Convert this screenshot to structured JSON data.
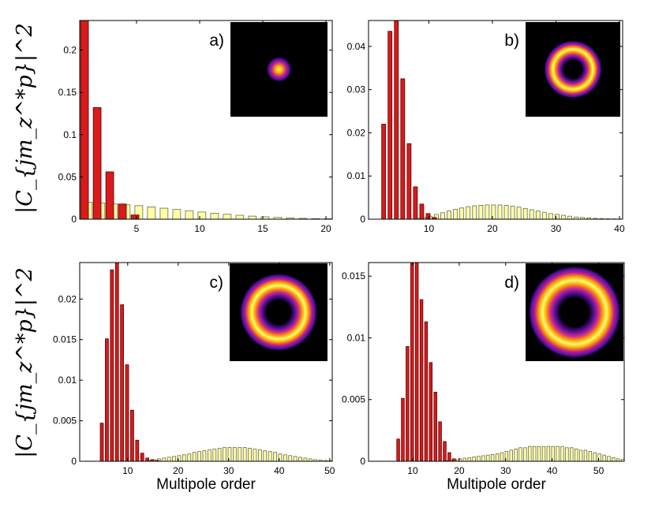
{
  "y_axis_label": "|C_{jm_z^*p}|^2",
  "colors": {
    "red": "#d81b1b",
    "red_edge": "#5a0000",
    "yellow": "#ffffa6",
    "yellow_edge": "#6b6b40"
  },
  "chart_data": [
    {
      "type": "bar",
      "panel": "a)",
      "xlabel": "",
      "xlim": [
        0.5,
        20.5
      ],
      "ylim": [
        0,
        0.235
      ],
      "xticks": [
        5,
        10,
        15,
        20
      ],
      "yticks": [
        0,
        0.05,
        0.1,
        0.15,
        0.2
      ],
      "ytick_labels": [
        "0",
        "0.05",
        "0.1",
        "0.15",
        "0.2"
      ],
      "inset": {
        "kind": "spot",
        "scale": 0.14
      },
      "series": [
        {
          "name": "red",
          "x": [
            1,
            2,
            3,
            4,
            5
          ],
          "values": [
            0.235,
            0.132,
            0.056,
            0.018,
            0.005
          ]
        },
        {
          "name": "yellow",
          "x": [
            1,
            2,
            3,
            4,
            5,
            6,
            7,
            8,
            9,
            10,
            11,
            12,
            13,
            14,
            15,
            16,
            17,
            18,
            19,
            20
          ],
          "values": [
            0.02,
            0.019,
            0.018,
            0.017,
            0.016,
            0.0145,
            0.013,
            0.0115,
            0.01,
            0.0085,
            0.007,
            0.0058,
            0.0046,
            0.0036,
            0.0028,
            0.0021,
            0.0015,
            0.001,
            0.0007,
            0.0005
          ]
        }
      ]
    },
    {
      "type": "bar",
      "panel": "b)",
      "xlabel": "",
      "xlim": [
        0.5,
        40.5
      ],
      "ylim": [
        0,
        0.046
      ],
      "xticks": [
        10,
        20,
        30,
        40
      ],
      "yticks": [
        0,
        0.01,
        0.02,
        0.03,
        0.04
      ],
      "ytick_labels": [
        "0",
        "0.01",
        "0.02",
        "0.03",
        "0.04"
      ],
      "inset": {
        "kind": "ring",
        "scale": 0.2
      },
      "series": [
        {
          "name": "red",
          "x": [
            3,
            4,
            5,
            6,
            7,
            8,
            9,
            10,
            11
          ],
          "values": [
            0.022,
            0.0435,
            0.046,
            0.0325,
            0.0175,
            0.0075,
            0.0035,
            0.0013,
            0.0004
          ]
        },
        {
          "name": "yellow",
          "x": [
            8,
            9,
            10,
            11,
            12,
            13,
            14,
            15,
            16,
            17,
            18,
            19,
            20,
            21,
            22,
            23,
            24,
            25,
            26,
            27,
            28,
            29,
            30,
            31,
            32,
            33,
            34,
            35,
            36,
            37,
            38,
            39,
            40
          ],
          "values": [
            0.0002,
            0.0004,
            0.0007,
            0.0011,
            0.0015,
            0.0019,
            0.0023,
            0.0026,
            0.0029,
            0.0031,
            0.0032,
            0.0033,
            0.0033,
            0.0033,
            0.0032,
            0.003,
            0.0028,
            0.0025,
            0.0022,
            0.0019,
            0.0016,
            0.0013,
            0.0011,
            0.0009,
            0.0007,
            0.0005,
            0.0004,
            0.0003,
            0.0002,
            0.00015,
            0.0001,
            8e-05,
            5e-05
          ]
        }
      ]
    },
    {
      "type": "bar",
      "panel": "c)",
      "xlabel": "Multipole order",
      "xlim": [
        0.5,
        50.5
      ],
      "ylim": [
        0,
        0.0245
      ],
      "xticks": [
        10,
        20,
        30,
        40,
        50
      ],
      "yticks": [
        0,
        0.005,
        0.01,
        0.015,
        0.02
      ],
      "ytick_labels": [
        "0",
        "0.005",
        "0.01",
        "0.015",
        "0.02"
      ],
      "inset": {
        "kind": "ring",
        "scale": 0.26
      },
      "series": [
        {
          "name": "red",
          "x": [
            5,
            6,
            7,
            8,
            9,
            10,
            11,
            12,
            13,
            14,
            15,
            16
          ],
          "values": [
            0.0047,
            0.0151,
            0.0236,
            0.0245,
            0.0193,
            0.0119,
            0.0063,
            0.0026,
            0.001,
            0.0004,
            0.0002,
            0.0001
          ]
        },
        {
          "name": "yellow",
          "x": [
            14,
            15,
            16,
            17,
            18,
            19,
            20,
            21,
            22,
            23,
            24,
            25,
            26,
            27,
            28,
            29,
            30,
            31,
            32,
            33,
            34,
            35,
            36,
            37,
            38,
            39,
            40,
            41,
            42,
            43,
            44,
            45,
            46,
            47,
            48,
            49,
            50
          ],
          "values": [
            0.0001,
            0.0002,
            0.0003,
            0.0004,
            0.0005,
            0.0006,
            0.0007,
            0.0008,
            0.0009,
            0.0011,
            0.0012,
            0.0013,
            0.0014,
            0.0015,
            0.0016,
            0.0017,
            0.0017,
            0.0017,
            0.0017,
            0.0017,
            0.0016,
            0.0015,
            0.0014,
            0.0013,
            0.0012,
            0.0011,
            0.0009,
            0.0008,
            0.0007,
            0.0006,
            0.0005,
            0.0004,
            0.0003,
            0.0002,
            0.00015,
            0.0001,
            7e-05
          ]
        }
      ]
    },
    {
      "type": "bar",
      "panel": "d)",
      "xlabel": "Multipole order",
      "xlim": [
        0.5,
        55.5
      ],
      "ylim": [
        0,
        0.0161
      ],
      "xticks": [
        10,
        20,
        30,
        40,
        50
      ],
      "yticks": [
        0,
        0.005,
        0.01,
        0.015
      ],
      "ytick_labels": [
        "0",
        "0.005",
        "0.01",
        "0.015"
      ],
      "inset": {
        "kind": "ring",
        "scale": 0.31
      },
      "series": [
        {
          "name": "red",
          "x": [
            7,
            8,
            9,
            10,
            11,
            12,
            13,
            14,
            15,
            16,
            17,
            18,
            19
          ],
          "values": [
            0.0018,
            0.0051,
            0.0093,
            0.0161,
            0.0161,
            0.0131,
            0.0113,
            0.008,
            0.0056,
            0.0032,
            0.0016,
            0.0007,
            0.0002
          ]
        },
        {
          "name": "yellow",
          "x": [
            17,
            18,
            19,
            20,
            21,
            22,
            23,
            24,
            25,
            26,
            27,
            28,
            29,
            30,
            31,
            32,
            33,
            34,
            35,
            36,
            37,
            38,
            39,
            40,
            41,
            42,
            43,
            44,
            45,
            46,
            47,
            48,
            49,
            50,
            51,
            52,
            53,
            54,
            55
          ],
          "values": [
            5e-05,
            0.0001,
            0.00015,
            0.0002,
            0.00025,
            0.0003,
            0.00035,
            0.0004,
            0.00045,
            0.0005,
            0.00055,
            0.0006,
            0.0007,
            0.0008,
            0.0009,
            0.001,
            0.0011,
            0.0011,
            0.0012,
            0.0012,
            0.0012,
            0.0012,
            0.0012,
            0.0012,
            0.0012,
            0.0012,
            0.0011,
            0.0011,
            0.001,
            0.0009,
            0.0009,
            0.0008,
            0.0007,
            0.0006,
            0.0005,
            0.0004,
            0.0003,
            0.0002,
            0.00015
          ]
        }
      ]
    }
  ]
}
